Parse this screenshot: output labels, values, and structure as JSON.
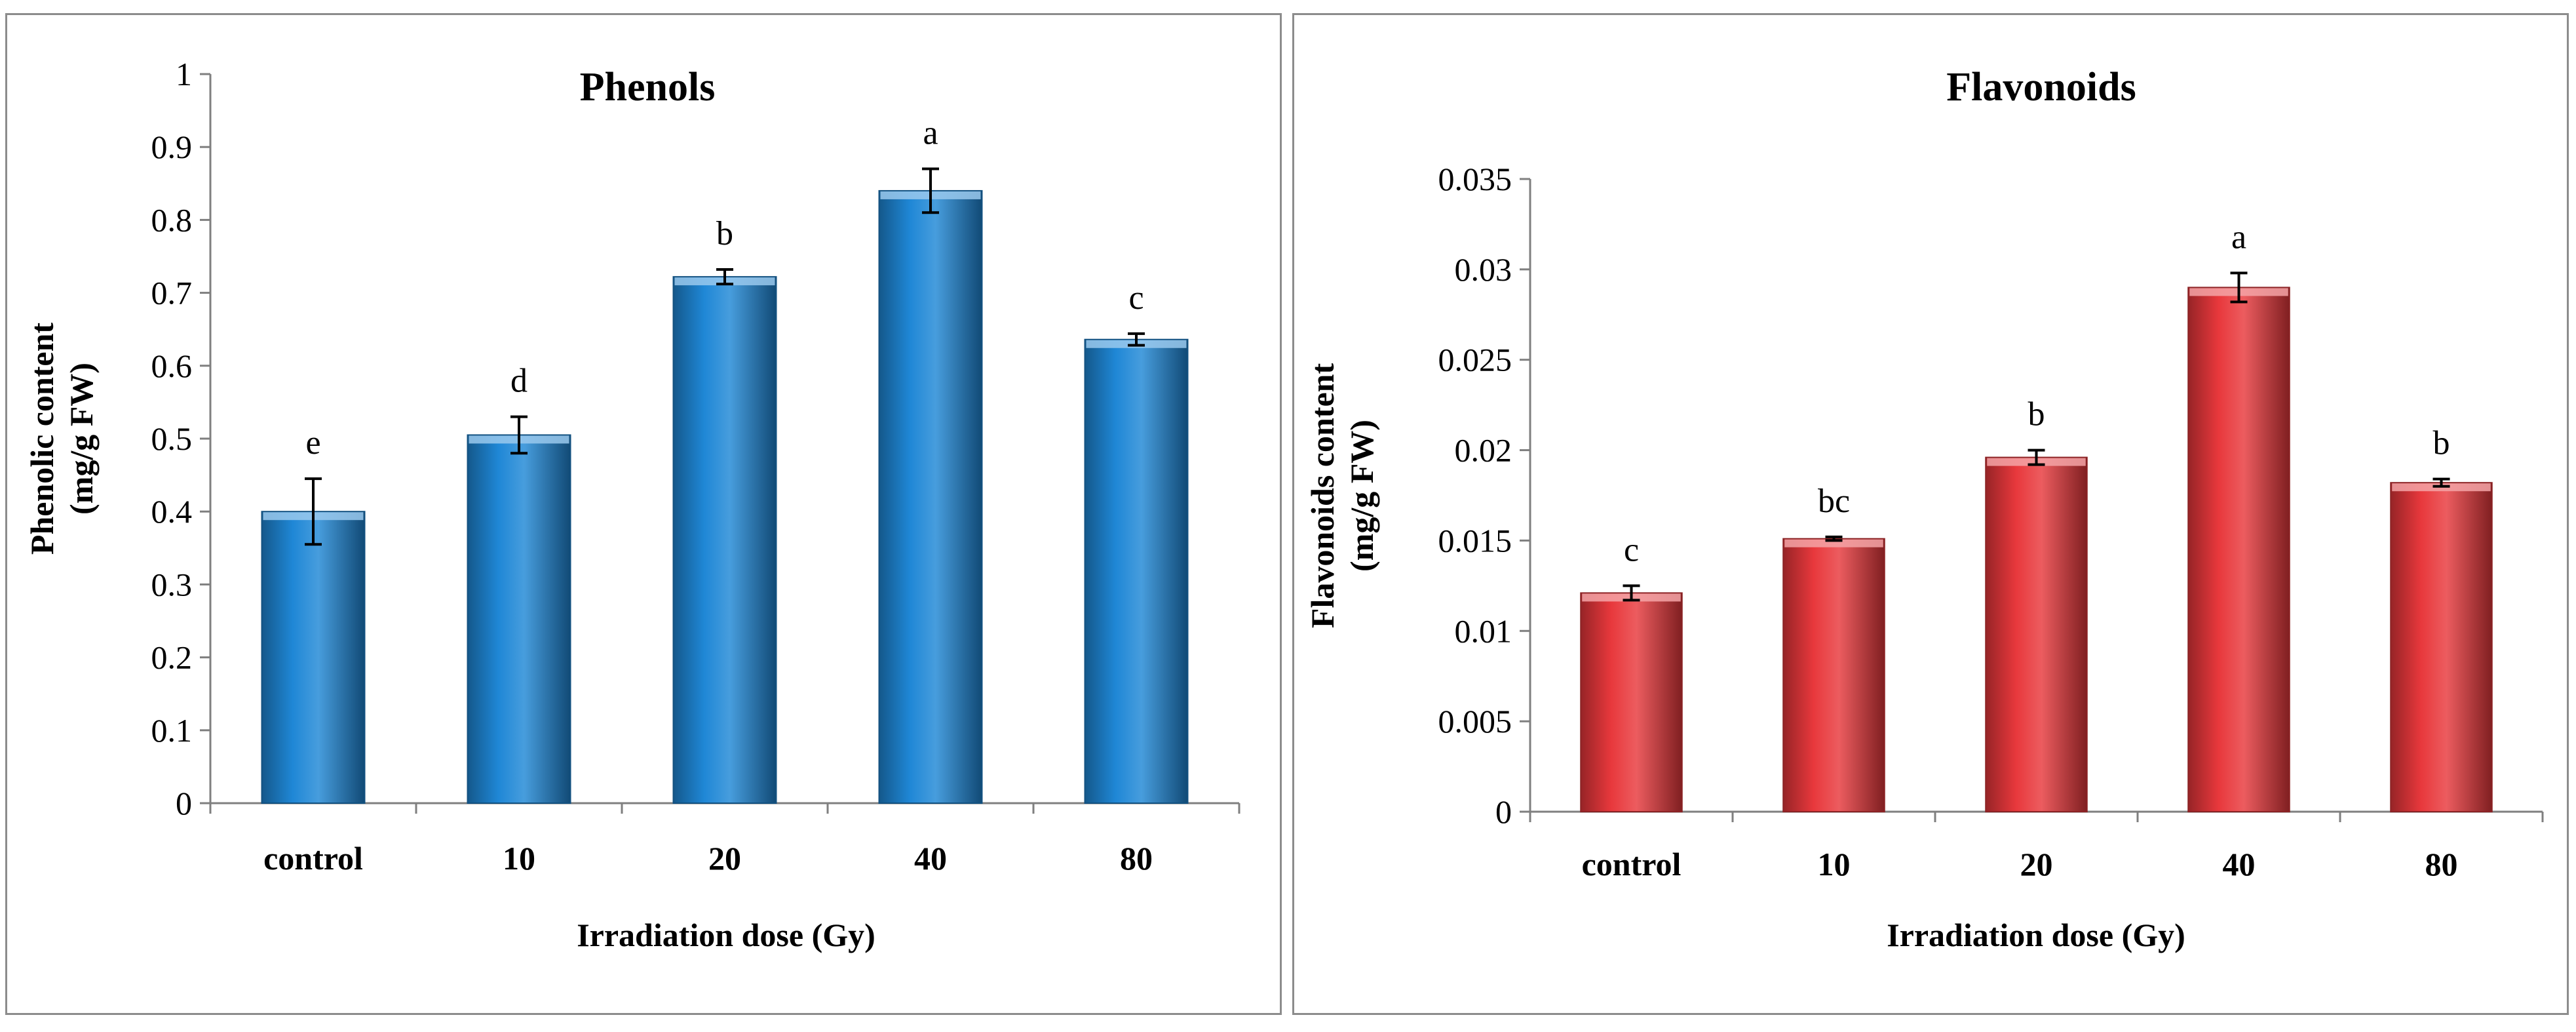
{
  "chart_data": [
    {
      "type": "bar",
      "title": "Phenols",
      "xlabel": "Irradiation  dose (Gy)",
      "ylabel_line1": "Phenolic  content",
      "ylabel_line2": "(mg/g  FW)",
      "categories": [
        "control",
        "10",
        "20",
        "40",
        "80"
      ],
      "values": [
        0.4,
        0.505,
        0.722,
        0.84,
        0.636
      ],
      "errors": [
        0.045,
        0.025,
        0.01,
        0.03,
        0.008
      ],
      "letters": [
        "e",
        "d",
        "b",
        "a",
        "c"
      ],
      "ylim": [
        0,
        1
      ],
      "yticks": [
        "0",
        "0.1",
        "0.2",
        "0.3",
        "0.4",
        "0.5",
        "0.6",
        "0.7",
        "0.8",
        "0.9",
        "1"
      ],
      "color": "#1f87d6"
    },
    {
      "type": "bar",
      "title": "Flavonoids",
      "xlabel": "Irradiation  dose (Gy)",
      "ylabel_line1": "Flavonoids   content",
      "ylabel_line2": "(mg/g  FW)",
      "categories": [
        "control",
        "10",
        "20",
        "40",
        "80"
      ],
      "values": [
        0.0121,
        0.0151,
        0.0196,
        0.029,
        0.0182
      ],
      "errors": [
        0.0004,
        0.0001,
        0.0004,
        0.0008,
        0.0002
      ],
      "letters": [
        "c",
        "bc",
        "b",
        "a",
        "b"
      ],
      "ylim": [
        0,
        0.035
      ],
      "yticks": [
        "0",
        "0.005",
        "0.01",
        "0.015",
        "0.02",
        "0.025",
        "0.03",
        "0.035"
      ],
      "color": "#e8383c"
    }
  ]
}
